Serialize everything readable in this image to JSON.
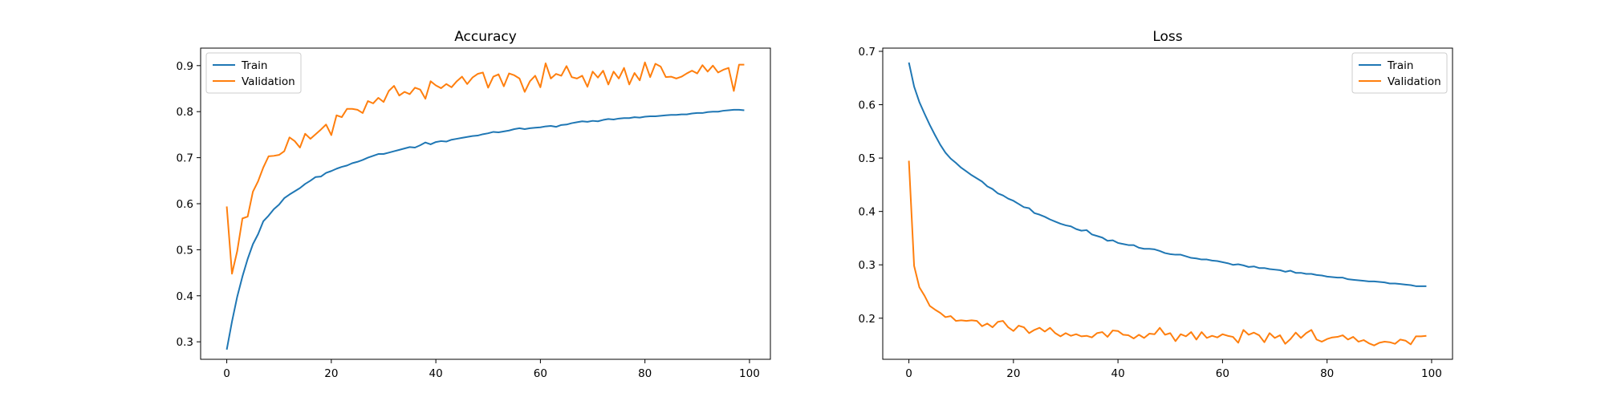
{
  "colors": {
    "train": "#1f77b4",
    "validation": "#ff7f0e"
  },
  "chart_data": [
    {
      "type": "line",
      "title": "Accuracy",
      "xlabel": "",
      "ylabel": "",
      "xlim": [
        -5,
        104
      ],
      "ylim": [
        0.262,
        0.938
      ],
      "xticks": [
        0,
        20,
        40,
        60,
        80,
        100
      ],
      "yticks": [
        0.3,
        0.4,
        0.5,
        0.6,
        0.7,
        0.8,
        0.9
      ],
      "grid": false,
      "legend_position": "top-left",
      "series": [
        {
          "name": "Train",
          "color_key": "train",
          "x": [
            0,
            1,
            2,
            3,
            4,
            5,
            6,
            7,
            8,
            9,
            10,
            11,
            12,
            13,
            14,
            15,
            16,
            17,
            18,
            19,
            20,
            21,
            22,
            23,
            24,
            25,
            26,
            27,
            28,
            29,
            30,
            31,
            32,
            33,
            34,
            35,
            36,
            37,
            38,
            39,
            40,
            41,
            42,
            43,
            44,
            45,
            46,
            47,
            48,
            49,
            50,
            51,
            52,
            53,
            54,
            55,
            56,
            57,
            58,
            59,
            60,
            61,
            62,
            63,
            64,
            65,
            66,
            67,
            68,
            69,
            70,
            71,
            72,
            73,
            74,
            75,
            76,
            77,
            78,
            79,
            80,
            81,
            82,
            83,
            84,
            85,
            86,
            87,
            88,
            89,
            90,
            91,
            92,
            93,
            94,
            95,
            96,
            97,
            98,
            99
          ],
          "values": [
            0.283,
            0.344,
            0.398,
            0.442,
            0.48,
            0.512,
            0.534,
            0.562,
            0.574,
            0.588,
            0.598,
            0.612,
            0.62,
            0.627,
            0.634,
            0.643,
            0.65,
            0.658,
            0.659,
            0.667,
            0.671,
            0.676,
            0.68,
            0.683,
            0.688,
            0.691,
            0.695,
            0.7,
            0.704,
            0.708,
            0.708,
            0.711,
            0.714,
            0.717,
            0.72,
            0.723,
            0.722,
            0.727,
            0.733,
            0.729,
            0.734,
            0.736,
            0.735,
            0.739,
            0.741,
            0.743,
            0.745,
            0.747,
            0.748,
            0.751,
            0.753,
            0.756,
            0.755,
            0.757,
            0.759,
            0.762,
            0.764,
            0.762,
            0.764,
            0.765,
            0.766,
            0.768,
            0.769,
            0.767,
            0.771,
            0.772,
            0.775,
            0.777,
            0.779,
            0.778,
            0.78,
            0.779,
            0.782,
            0.784,
            0.783,
            0.785,
            0.786,
            0.786,
            0.788,
            0.787,
            0.789,
            0.79,
            0.79,
            0.791,
            0.792,
            0.793,
            0.793,
            0.794,
            0.794,
            0.796,
            0.797,
            0.797,
            0.799,
            0.8,
            0.8,
            0.802,
            0.803,
            0.804,
            0.804,
            0.803
          ]
        },
        {
          "name": "Validation",
          "color_key": "validation",
          "x": [
            0,
            1,
            2,
            3,
            4,
            5,
            6,
            7,
            8,
            9,
            10,
            11,
            12,
            13,
            14,
            15,
            16,
            17,
            18,
            19,
            20,
            21,
            22,
            23,
            24,
            25,
            26,
            27,
            28,
            29,
            30,
            31,
            32,
            33,
            34,
            35,
            36,
            37,
            38,
            39,
            40,
            41,
            42,
            43,
            44,
            45,
            46,
            47,
            48,
            49,
            50,
            51,
            52,
            53,
            54,
            55,
            56,
            57,
            58,
            59,
            60,
            61,
            62,
            63,
            64,
            65,
            66,
            67,
            68,
            69,
            70,
            71,
            72,
            73,
            74,
            75,
            76,
            77,
            78,
            79,
            80,
            81,
            82,
            83,
            84,
            85,
            86,
            87,
            88,
            89,
            90,
            91,
            92,
            93,
            94,
            95,
            96,
            97,
            98,
            99
          ],
          "values": [
            0.594,
            0.448,
            0.497,
            0.568,
            0.572,
            0.626,
            0.649,
            0.679,
            0.703,
            0.704,
            0.706,
            0.714,
            0.744,
            0.736,
            0.722,
            0.752,
            0.741,
            0.751,
            0.761,
            0.772,
            0.749,
            0.792,
            0.788,
            0.806,
            0.806,
            0.804,
            0.797,
            0.823,
            0.818,
            0.83,
            0.821,
            0.845,
            0.856,
            0.835,
            0.843,
            0.838,
            0.852,
            0.848,
            0.828,
            0.866,
            0.857,
            0.851,
            0.86,
            0.853,
            0.866,
            0.876,
            0.86,
            0.874,
            0.882,
            0.885,
            0.852,
            0.876,
            0.881,
            0.855,
            0.883,
            0.879,
            0.872,
            0.843,
            0.866,
            0.878,
            0.853,
            0.905,
            0.872,
            0.882,
            0.878,
            0.899,
            0.875,
            0.872,
            0.878,
            0.854,
            0.887,
            0.874,
            0.889,
            0.859,
            0.887,
            0.872,
            0.895,
            0.859,
            0.884,
            0.868,
            0.907,
            0.875,
            0.904,
            0.898,
            0.875,
            0.876,
            0.872,
            0.876,
            0.883,
            0.889,
            0.883,
            0.901,
            0.887,
            0.9,
            0.885,
            0.891,
            0.895,
            0.845,
            0.902,
            0.902
          ]
        }
      ]
    },
    {
      "type": "line",
      "title": "Loss",
      "xlabel": "",
      "ylabel": "",
      "xlim": [
        -5,
        104
      ],
      "ylim": [
        0.123,
        0.706
      ],
      "xticks": [
        0,
        20,
        40,
        60,
        80,
        100
      ],
      "yticks": [
        0.2,
        0.3,
        0.4,
        0.5,
        0.6,
        0.7
      ],
      "grid": false,
      "legend_position": "top-right",
      "series": [
        {
          "name": "Train",
          "color_key": "train",
          "x": [
            0,
            1,
            2,
            3,
            4,
            5,
            6,
            7,
            8,
            9,
            10,
            11,
            12,
            13,
            14,
            15,
            16,
            17,
            18,
            19,
            20,
            21,
            22,
            23,
            24,
            25,
            26,
            27,
            28,
            29,
            30,
            31,
            32,
            33,
            34,
            35,
            36,
            37,
            38,
            39,
            40,
            41,
            42,
            43,
            44,
            45,
            46,
            47,
            48,
            49,
            50,
            51,
            52,
            53,
            54,
            55,
            56,
            57,
            58,
            59,
            60,
            61,
            62,
            63,
            64,
            65,
            66,
            67,
            68,
            69,
            70,
            71,
            72,
            73,
            74,
            75,
            76,
            77,
            78,
            79,
            80,
            81,
            82,
            83,
            84,
            85,
            86,
            87,
            88,
            89,
            90,
            91,
            92,
            93,
            94,
            95,
            96,
            97,
            98,
            99
          ],
          "values": [
            0.679,
            0.634,
            0.605,
            0.583,
            0.562,
            0.543,
            0.525,
            0.51,
            0.499,
            0.491,
            0.482,
            0.475,
            0.468,
            0.462,
            0.456,
            0.447,
            0.442,
            0.434,
            0.43,
            0.424,
            0.42,
            0.414,
            0.408,
            0.406,
            0.397,
            0.394,
            0.39,
            0.385,
            0.381,
            0.377,
            0.374,
            0.372,
            0.367,
            0.364,
            0.365,
            0.357,
            0.354,
            0.351,
            0.345,
            0.346,
            0.341,
            0.339,
            0.337,
            0.337,
            0.332,
            0.33,
            0.33,
            0.329,
            0.326,
            0.322,
            0.32,
            0.319,
            0.319,
            0.316,
            0.313,
            0.312,
            0.31,
            0.31,
            0.308,
            0.307,
            0.305,
            0.303,
            0.3,
            0.301,
            0.299,
            0.296,
            0.297,
            0.294,
            0.294,
            0.292,
            0.291,
            0.29,
            0.287,
            0.289,
            0.285,
            0.285,
            0.283,
            0.283,
            0.281,
            0.28,
            0.278,
            0.277,
            0.276,
            0.276,
            0.273,
            0.272,
            0.271,
            0.27,
            0.269,
            0.269,
            0.268,
            0.267,
            0.265,
            0.265,
            0.264,
            0.263,
            0.262,
            0.26,
            0.26,
            0.26
          ]
        },
        {
          "name": "Validation",
          "color_key": "validation",
          "x": [
            0,
            1,
            2,
            3,
            4,
            5,
            6,
            7,
            8,
            9,
            10,
            11,
            12,
            13,
            14,
            15,
            16,
            17,
            18,
            19,
            20,
            21,
            22,
            23,
            24,
            25,
            26,
            27,
            28,
            29,
            30,
            31,
            32,
            33,
            34,
            35,
            36,
            37,
            38,
            39,
            40,
            41,
            42,
            43,
            44,
            45,
            46,
            47,
            48,
            49,
            50,
            51,
            52,
            53,
            54,
            55,
            56,
            57,
            58,
            59,
            60,
            61,
            62,
            63,
            64,
            65,
            66,
            67,
            68,
            69,
            70,
            71,
            72,
            73,
            74,
            75,
            76,
            77,
            78,
            79,
            80,
            81,
            82,
            83,
            84,
            85,
            86,
            87,
            88,
            89,
            90,
            91,
            92,
            93,
            94,
            95,
            96,
            97,
            98,
            99
          ],
          "values": [
            0.495,
            0.298,
            0.258,
            0.242,
            0.223,
            0.216,
            0.21,
            0.202,
            0.204,
            0.195,
            0.196,
            0.195,
            0.196,
            0.195,
            0.185,
            0.19,
            0.183,
            0.193,
            0.195,
            0.183,
            0.176,
            0.186,
            0.183,
            0.172,
            0.178,
            0.182,
            0.175,
            0.182,
            0.172,
            0.166,
            0.172,
            0.167,
            0.17,
            0.166,
            0.167,
            0.164,
            0.172,
            0.174,
            0.165,
            0.177,
            0.176,
            0.169,
            0.168,
            0.162,
            0.169,
            0.163,
            0.171,
            0.17,
            0.182,
            0.169,
            0.172,
            0.157,
            0.17,
            0.166,
            0.174,
            0.16,
            0.174,
            0.163,
            0.167,
            0.164,
            0.17,
            0.167,
            0.165,
            0.154,
            0.178,
            0.169,
            0.173,
            0.168,
            0.155,
            0.172,
            0.163,
            0.168,
            0.152,
            0.161,
            0.173,
            0.163,
            0.172,
            0.178,
            0.16,
            0.156,
            0.161,
            0.164,
            0.165,
            0.168,
            0.16,
            0.165,
            0.156,
            0.159,
            0.153,
            0.149,
            0.154,
            0.156,
            0.155,
            0.152,
            0.16,
            0.158,
            0.151,
            0.166,
            0.166,
            0.167
          ]
        }
      ]
    }
  ]
}
